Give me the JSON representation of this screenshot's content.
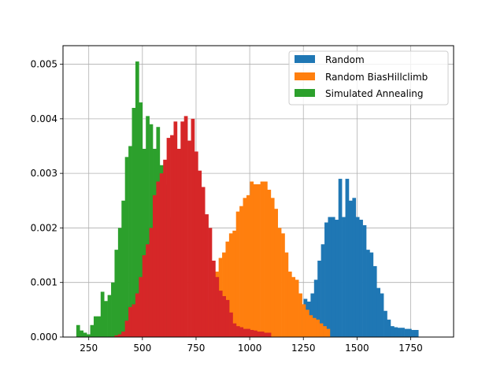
{
  "chart_data": {
    "type": "histogram",
    "title": "",
    "xlabel": "",
    "ylabel": "",
    "xlim": [
      130,
      1950
    ],
    "ylim": [
      0,
      0.00534
    ],
    "xticks": [
      250,
      500,
      750,
      1000,
      1250,
      1500,
      1750
    ],
    "yticks": [
      0.0,
      0.001,
      0.002,
      0.003,
      0.004,
      0.005
    ],
    "ytick_labels": [
      "0.000",
      "0.001",
      "0.002",
      "0.003",
      "0.004",
      "0.005"
    ],
    "grid": true,
    "legend_position": "upper right",
    "series": [
      {
        "name": "Random",
        "color": "#1f77b4",
        "bin_start": 1235,
        "bin_width": 16.2,
        "values": [
          0.0006,
          0.0007,
          0.00065,
          0.0008,
          0.00105,
          0.0014,
          0.0017,
          0.0021,
          0.0022,
          0.0022,
          0.00215,
          0.0029,
          0.0022,
          0.0029,
          0.0025,
          0.00255,
          0.0022,
          0.00215,
          0.00205,
          0.0016,
          0.00155,
          0.0013,
          0.0009,
          0.0008,
          0.00048,
          0.00032,
          0.0002,
          0.00018,
          0.00017,
          0.00017,
          0.00015,
          0.00015,
          0.00013,
          0.00013
        ]
      },
      {
        "name": "Random BiasHillclimb",
        "color": "#ff7f0e",
        "bin_start": 758,
        "bin_width": 16.2,
        "values": [
          0.0002,
          0.00035,
          0.0005,
          0.00065,
          0.00085,
          0.0012,
          0.00145,
          0.00155,
          0.00175,
          0.0019,
          0.00195,
          0.0023,
          0.0024,
          0.00255,
          0.0026,
          0.00285,
          0.0028,
          0.0028,
          0.00285,
          0.00285,
          0.0027,
          0.00255,
          0.00235,
          0.002,
          0.0019,
          0.00155,
          0.0012,
          0.0011,
          0.00105,
          0.0008,
          0.0006,
          0.0005,
          0.0004,
          0.00035,
          0.00032,
          0.00025,
          0.0002,
          0.00015
        ]
      },
      {
        "name": "Simulated Annealing",
        "color": "#2ca02c",
        "bin_start": 192,
        "bin_width": 16.2,
        "values": [
          0.00022,
          0.00012,
          8e-05,
          5e-05,
          0.00022,
          0.00038,
          0.00038,
          0.00083,
          0.00066,
          0.00077,
          0.001,
          0.0016,
          0.002,
          0.0025,
          0.0033,
          0.0035,
          0.0042,
          0.00505,
          0.0043,
          0.00345,
          0.00405,
          0.0039,
          0.00345,
          0.00385,
          0.00315,
          0.0028,
          0.0022,
          0.0017,
          0.0012,
          0.00105,
          0.0008
        ]
      },
      {
        "name": "",
        "color": "#d62728",
        "bin_start": 370,
        "bin_width": 16.2,
        "values": [
          3e-05,
          5e-05,
          0.0001,
          0.0003,
          0.00055,
          0.0006,
          0.0008,
          0.0011,
          0.0015,
          0.0017,
          0.002,
          0.0026,
          0.00285,
          0.003,
          0.00325,
          0.00365,
          0.0037,
          0.00395,
          0.00345,
          0.00395,
          0.00405,
          0.0036,
          0.004,
          0.0034,
          0.00305,
          0.00275,
          0.00225,
          0.002,
          0.0014,
          0.0011,
          0.00085,
          0.00075,
          0.00068,
          0.00045,
          0.00025,
          0.0002,
          0.00018,
          0.00015,
          0.00015,
          0.00013,
          0.00012,
          0.0001,
          0.0001,
          8e-05,
          8e-05
        ]
      }
    ]
  }
}
